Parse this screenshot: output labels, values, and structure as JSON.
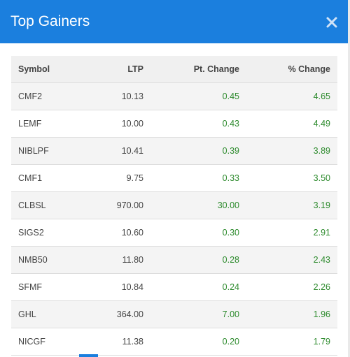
{
  "modal": {
    "title": "Top Gainers",
    "close_icon": "close-icon",
    "accent_color": "#1b7fde",
    "gain_color": "#2e8b2e"
  },
  "table": {
    "headers": {
      "symbol": "Symbol",
      "ltp": "LTP",
      "pt_change": "Pt. Change",
      "pct_change": "% Change"
    },
    "rows": [
      {
        "symbol": "CMF2",
        "ltp": "10.13",
        "pt_change": "0.45",
        "pct_change": "4.65"
      },
      {
        "symbol": "LEMF",
        "ltp": "10.00",
        "pt_change": "0.43",
        "pct_change": "4.49"
      },
      {
        "symbol": "NIBLPF",
        "ltp": "10.41",
        "pt_change": "0.39",
        "pct_change": "3.89"
      },
      {
        "symbol": "CMF1",
        "ltp": "9.75",
        "pt_change": "0.33",
        "pct_change": "3.50"
      },
      {
        "symbol": "CLBSL",
        "ltp": "970.00",
        "pt_change": "30.00",
        "pct_change": "3.19"
      },
      {
        "symbol": "SIGS2",
        "ltp": "10.60",
        "pt_change": "0.30",
        "pct_change": "2.91"
      },
      {
        "symbol": "NMB50",
        "ltp": "11.80",
        "pt_change": "0.28",
        "pct_change": "2.43"
      },
      {
        "symbol": "SFMF",
        "ltp": "10.84",
        "pt_change": "0.24",
        "pct_change": "2.26"
      },
      {
        "symbol": "GHL",
        "ltp": "364.00",
        "pt_change": "7.00",
        "pct_change": "1.96"
      },
      {
        "symbol": "NICGF",
        "ltp": "11.38",
        "pt_change": "0.20",
        "pct_change": "1.79"
      }
    ]
  }
}
